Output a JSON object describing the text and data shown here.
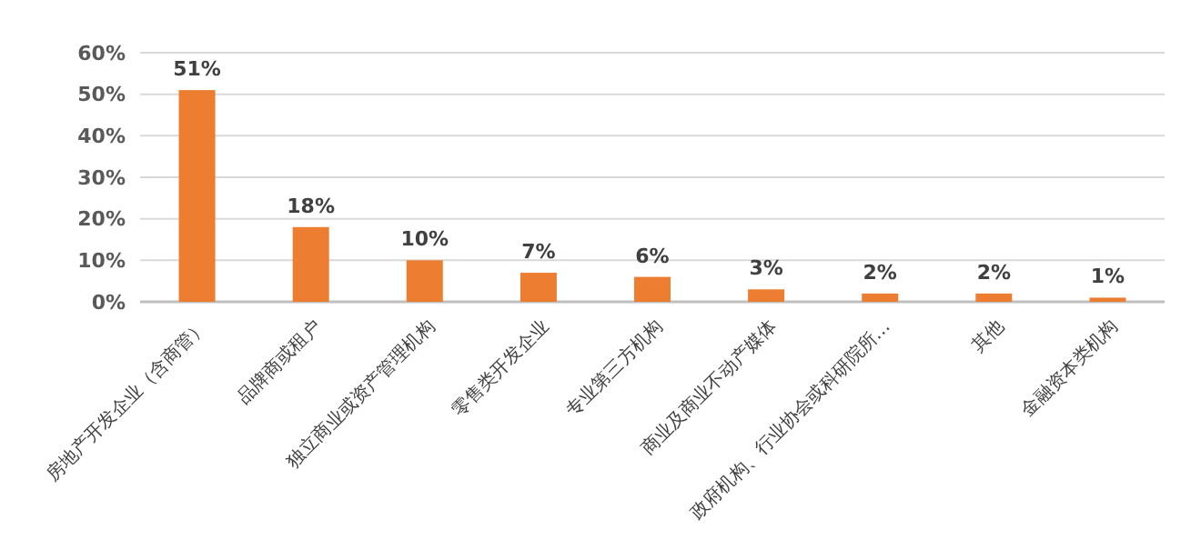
{
  "chart_data": {
    "type": "bar",
    "categories": [
      "房地产开发企业（含商管）",
      "品牌商或租户",
      "独立商业或资产管理机构",
      "零售类开发企业",
      "专业第三方机构",
      "商业及商业不动产媒体",
      "政府机构、行业协会或科研院所…",
      "其他",
      "金融资本类机构"
    ],
    "values": [
      51,
      18,
      10,
      7,
      6,
      3,
      2,
      2,
      1
    ],
    "color": "#ed7d31",
    "ylim": [
      0,
      60
    ],
    "yticks": [
      {
        "value": 0,
        "label": "0%"
      },
      {
        "value": 10,
        "label": "10%"
      },
      {
        "value": 20,
        "label": "20%"
      },
      {
        "value": 30,
        "label": "30%"
      },
      {
        "value": 40,
        "label": "40%"
      },
      {
        "value": 50,
        "label": "50%"
      },
      {
        "value": 60,
        "label": "60%"
      }
    ],
    "value_labels": [
      "51%",
      "18%",
      "10%",
      "7%",
      "6%",
      "3%",
      "2%",
      "2%",
      "1%"
    ],
    "grid": "y"
  }
}
